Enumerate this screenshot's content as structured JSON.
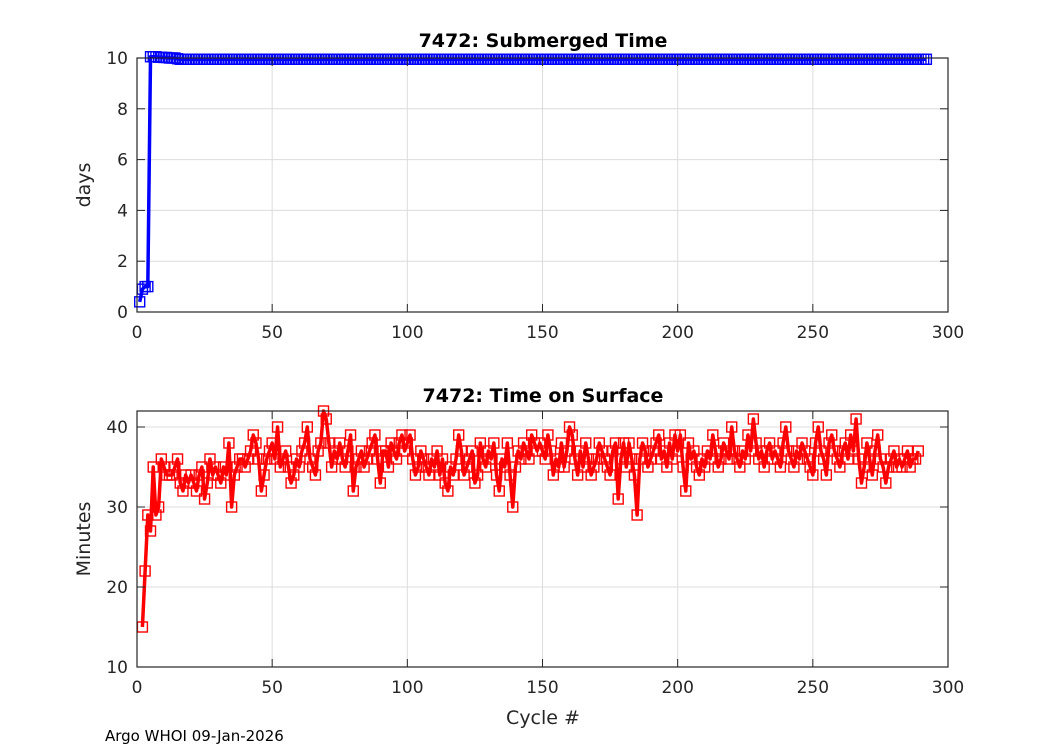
{
  "footer": "Argo WHOI 09-Jan-2026",
  "chart_data": [
    {
      "type": "line",
      "title": "7472: Submerged Time",
      "xlabel": "",
      "ylabel": "days",
      "xlim": [
        0,
        300
      ],
      "ylim": [
        0,
        10
      ],
      "xticks": [
        0,
        50,
        100,
        150,
        200,
        250,
        300
      ],
      "yticks": [
        0,
        2,
        4,
        6,
        8,
        10
      ],
      "grid": true,
      "color": "#0000ff",
      "marker": "square",
      "x_start": 1,
      "values": [
        0.4,
        0.9,
        1.0,
        1.0,
        10.05,
        10.05,
        10.05,
        10.03,
        10.03,
        10.02,
        10.02,
        10.0,
        10.0,
        10.0,
        9.97,
        9.95,
        9.95,
        9.95,
        9.95,
        9.95,
        9.95,
        9.95,
        9.95,
        9.95,
        9.95,
        9.95,
        9.95,
        9.95,
        9.95,
        9.95,
        9.95,
        9.95,
        9.95,
        9.95,
        9.95,
        9.95,
        9.95,
        9.95,
        9.95,
        9.95,
        9.95,
        9.95,
        9.95,
        9.95,
        9.95,
        9.95,
        9.95,
        9.95,
        9.95,
        9.95,
        9.95,
        9.95,
        9.95,
        9.95,
        9.95,
        9.95,
        9.95,
        9.95,
        9.95,
        9.95,
        9.95,
        9.95,
        9.95,
        9.95,
        9.95,
        9.95,
        9.95,
        9.95,
        9.95,
        9.95,
        9.95,
        9.95,
        9.95,
        9.95,
        9.95,
        9.95,
        9.95,
        9.95,
        9.95,
        9.95,
        9.95,
        9.95,
        9.95,
        9.95,
        9.95,
        9.95,
        9.95,
        9.95,
        9.95,
        9.95,
        9.95,
        9.95,
        9.95,
        9.95,
        9.95,
        9.95,
        9.95,
        9.95,
        9.95,
        9.95,
        9.95,
        9.95,
        9.95,
        9.95,
        9.95,
        9.95,
        9.95,
        9.95,
        9.95,
        9.95,
        9.95,
        9.95,
        9.95,
        9.95,
        9.95,
        9.95,
        9.95,
        9.95,
        9.95,
        9.95,
        9.95,
        9.95,
        9.95,
        9.95,
        9.95,
        9.95,
        9.95,
        9.95,
        9.95,
        9.95,
        9.95,
        9.95,
        9.95,
        9.95,
        9.95,
        9.95,
        9.95,
        9.95,
        9.95,
        9.95,
        9.95,
        9.95,
        9.95,
        9.95,
        9.95,
        9.95,
        9.95,
        9.95,
        9.95,
        9.95,
        9.95,
        9.95,
        9.95,
        9.95,
        9.95,
        9.95,
        9.95,
        9.95,
        9.95,
        9.95,
        9.95,
        9.95,
        9.95,
        9.95,
        9.95,
        9.95,
        9.95,
        9.95,
        9.95,
        9.95,
        9.95,
        9.95,
        9.95,
        9.95,
        9.95,
        9.95,
        9.95,
        9.95,
        9.95,
        9.95,
        9.95,
        9.95,
        9.95,
        9.95,
        9.95,
        9.95,
        9.95,
        9.95,
        9.95,
        9.95,
        9.95,
        9.95,
        9.95,
        9.95,
        9.95,
        9.95,
        9.95,
        9.95,
        9.95,
        9.95,
        9.95,
        9.95,
        9.95,
        9.95,
        9.95,
        9.95,
        9.95,
        9.95,
        9.95,
        9.95,
        9.95,
        9.95,
        9.95,
        9.95,
        9.95,
        9.95,
        9.95,
        9.95,
        9.95,
        9.95,
        9.95,
        9.95,
        9.95,
        9.95,
        9.95,
        9.95,
        9.95,
        9.95,
        9.95,
        9.95,
        9.95,
        9.95,
        9.95,
        9.95,
        9.95,
        9.95,
        9.95,
        9.95,
        9.95,
        9.95,
        9.95,
        9.95,
        9.95,
        9.95,
        9.95,
        9.95,
        9.95,
        9.95,
        9.95,
        9.95,
        9.95,
        9.95,
        9.95,
        9.95,
        9.95,
        9.95,
        9.95,
        9.95,
        9.95,
        9.95,
        9.95,
        9.95,
        9.95,
        9.95,
        9.95,
        9.95,
        9.95,
        9.95,
        9.95,
        9.95,
        9.95,
        9.95,
        9.95,
        9.95,
        9.95,
        9.95,
        9.95,
        9.95,
        9.95,
        9.95,
        9.95,
        9.95,
        9.95,
        9.95,
        9.95,
        9.95,
        9.95,
        9.95,
        9.95,
        9.95,
        9.95,
        9.95
      ]
    },
    {
      "type": "line",
      "title": "7472: Time on Surface",
      "xlabel": "Cycle #",
      "ylabel": "Minutes",
      "xlim": [
        0,
        300
      ],
      "ylim": [
        10,
        42
      ],
      "xticks": [
        0,
        50,
        100,
        150,
        200,
        250,
        300
      ],
      "yticks": [
        10,
        20,
        30,
        40
      ],
      "grid": true,
      "color": "#ff0000",
      "marker": "square",
      "x_start": 2,
      "values": [
        15,
        22,
        29,
        27,
        35,
        29,
        30,
        36,
        35,
        34,
        34,
        34,
        35,
        36,
        33,
        32,
        34,
        33,
        34,
        33,
        32,
        34,
        35,
        31,
        33,
        36,
        34,
        35,
        34,
        33,
        35,
        34,
        38,
        30,
        34,
        35,
        36,
        36,
        35,
        36,
        37,
        39,
        38,
        36,
        32,
        34,
        36,
        37,
        38,
        36,
        40,
        35,
        36,
        37,
        35,
        33,
        34,
        36,
        35,
        37,
        38,
        40,
        36,
        35,
        34,
        37,
        38,
        42,
        41,
        38,
        35,
        37,
        36,
        38,
        36,
        35,
        37,
        39,
        32,
        35,
        36,
        37,
        35,
        36,
        37,
        38,
        39,
        36,
        33,
        37,
        37,
        35,
        38,
        37,
        36,
        38,
        39,
        37,
        38,
        39,
        36,
        34,
        35,
        37,
        36,
        35,
        34,
        36,
        35,
        37,
        34,
        36,
        33,
        32,
        35,
        34,
        36,
        39,
        37,
        34,
        35,
        36,
        37,
        33,
        34,
        38,
        36,
        35,
        37,
        36,
        38,
        34,
        32,
        36,
        35,
        38,
        34,
        30,
        35,
        37,
        36,
        38,
        37,
        36,
        39,
        38,
        37,
        38,
        37,
        36,
        39,
        37,
        34,
        36,
        35,
        38,
        35,
        37,
        40,
        39,
        36,
        34,
        37,
        35,
        38,
        36,
        34,
        35,
        36,
        38,
        37,
        36,
        35,
        34,
        37,
        38,
        31,
        36,
        38,
        35,
        38,
        36,
        34,
        29,
        36,
        38,
        37,
        35,
        36,
        37,
        38,
        39,
        36,
        37,
        35,
        38,
        36,
        39,
        37,
        39,
        35,
        32,
        38,
        36,
        37,
        35,
        34,
        36,
        35,
        37,
        36,
        39,
        37,
        35,
        36,
        38,
        37,
        36,
        40,
        37,
        36,
        35,
        37,
        36,
        39,
        37,
        41,
        38,
        36,
        37,
        35,
        37,
        38,
        36,
        37,
        36,
        35,
        38,
        40,
        37,
        36,
        35,
        37,
        36,
        38,
        37,
        36,
        35,
        34,
        38,
        40,
        37,
        36,
        34,
        38,
        39,
        37,
        36,
        35,
        37,
        38,
        36,
        39,
        37,
        41,
        36,
        33,
        35,
        38,
        36,
        34,
        37,
        39,
        36,
        35,
        33,
        35,
        36,
        37,
        35,
        36,
        35,
        36,
        37,
        35,
        36,
        36,
        37
      ]
    }
  ]
}
